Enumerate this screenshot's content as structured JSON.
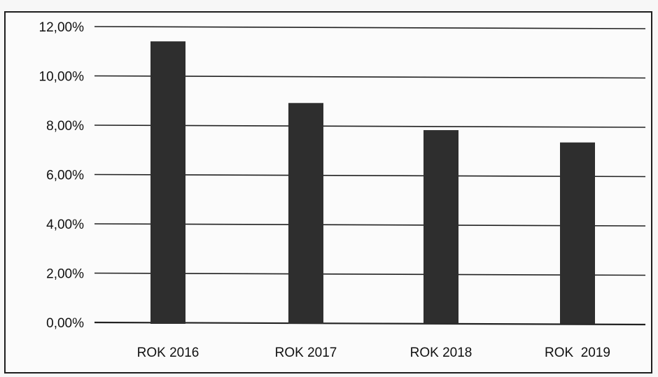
{
  "colors": {
    "bar": "#2e2e2e",
    "grid": "#222222",
    "background": "#fbfbfb"
  },
  "chart_data": {
    "type": "bar",
    "categories": [
      "ROK 2016",
      "ROK 2017",
      "ROK 2018",
      "ROK  2019"
    ],
    "values": [
      11.4,
      8.9,
      7.8,
      7.3
    ],
    "y_ticks": [
      "0,00%",
      "2,00%",
      "4,00%",
      "6,00%",
      "8,00%",
      "10,00%",
      "12,00%"
    ],
    "ylim": [
      0,
      12
    ],
    "grid": true,
    "legend": "none"
  }
}
